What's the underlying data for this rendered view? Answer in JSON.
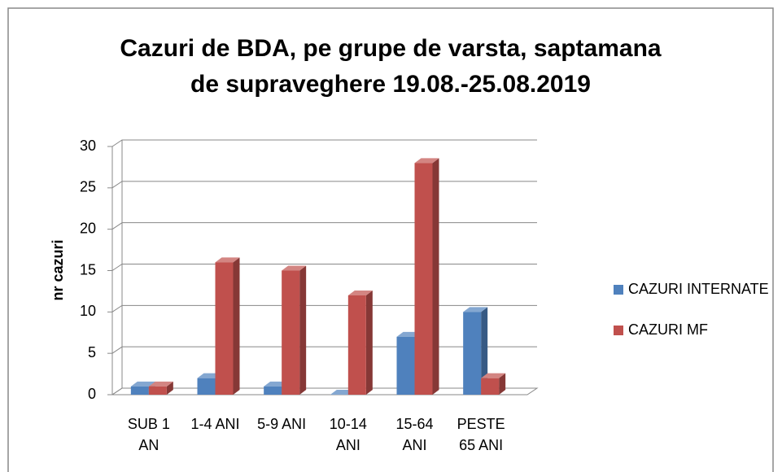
{
  "chart_data": {
    "type": "bar3d",
    "title": "Cazuri de BDA, pe grupe de varsta, saptamana de supraveghere 19.08.-25.08.2019",
    "ylabel": "nr cazuri",
    "categories": [
      "SUB 1 AN",
      "1-4 ANI",
      "5-9 ANI",
      "10-14 ANI",
      "15-64 ANI",
      "PESTE 65 ANI"
    ],
    "series": [
      {
        "name": "CAZURI INTERNATE",
        "color": "#4f81bd",
        "values": [
          1,
          2,
          1,
          0,
          7,
          10
        ]
      },
      {
        "name": "CAZURI MF",
        "color": "#c0504d",
        "values": [
          1,
          16,
          15,
          12,
          28,
          2
        ]
      }
    ],
    "ylim": [
      0,
      30
    ],
    "yticks": [
      0,
      5,
      10,
      15,
      20,
      25,
      30
    ],
    "grid": true,
    "legend": "right"
  }
}
